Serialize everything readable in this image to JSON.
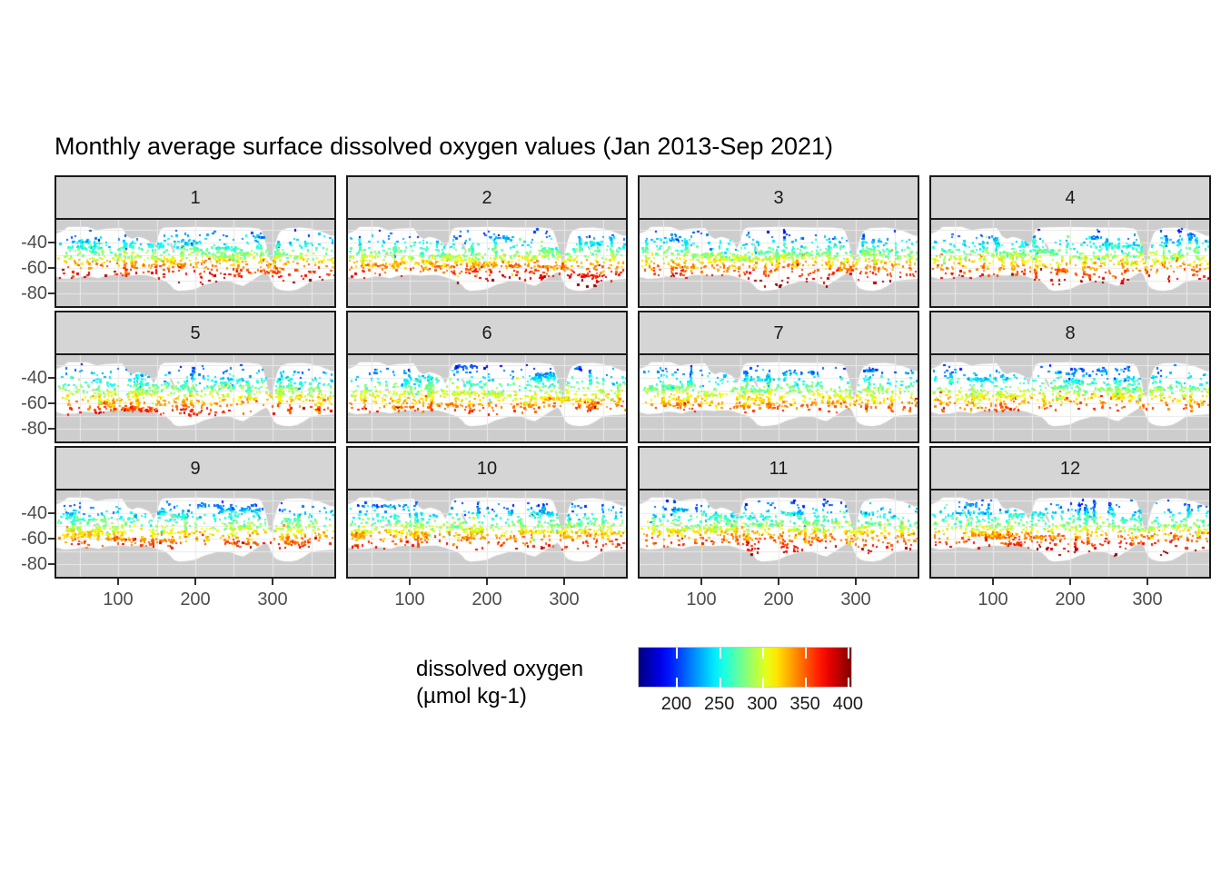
{
  "chart_data": {
    "type": "scatter",
    "subtype": "faceted-geographic-scatter",
    "title": "Monthly average surface dissolved oxygen values (Jan 2013-Sep 2021)",
    "x_axis": {
      "range": [
        20,
        380
      ],
      "major_ticks": [
        100,
        200,
        300
      ],
      "minor_gridlines": [
        50,
        150,
        250,
        350
      ],
      "tick_labels": [
        "100",
        "200",
        "300"
      ]
    },
    "y_axis": {
      "range": [
        -22,
        -90
      ],
      "major_ticks": [
        -40,
        -60,
        -80
      ],
      "minor_gridlines": [
        -30,
        -50,
        -70,
        -90
      ],
      "tick_labels": [
        "-40",
        "-60",
        "-80"
      ]
    },
    "grid": "on",
    "legend_position": "bottom",
    "color_scale": {
      "title_line1": "dissolved oxygen",
      "title_line2": "(µmol kg-1)",
      "palette": "jet",
      "limits": [
        155,
        405
      ],
      "tick_values": [
        200,
        250,
        300,
        350,
        400
      ],
      "tick_labels": [
        "200",
        "250",
        "300",
        "350",
        "400"
      ]
    },
    "facets": [
      {
        "label": "1",
        "south_extent": -76,
        "do_boost": 14
      },
      {
        "label": "2",
        "south_extent": -75,
        "do_boost": 12
      },
      {
        "label": "3",
        "south_extent": -74,
        "do_boost": 10
      },
      {
        "label": "4",
        "south_extent": -72,
        "do_boost": 4
      },
      {
        "label": "5",
        "south_extent": -68,
        "do_boost": 2
      },
      {
        "label": "6",
        "south_extent": -66.5,
        "do_boost": 0
      },
      {
        "label": "7",
        "south_extent": -65,
        "do_boost": 0
      },
      {
        "label": "8",
        "south_extent": -64,
        "do_boost": 2
      },
      {
        "label": "9",
        "south_extent": -65.5,
        "do_boost": 4
      },
      {
        "label": "10",
        "south_extent": -68,
        "do_boost": 8
      },
      {
        "label": "11",
        "south_extent": -72,
        "do_boost": 10
      },
      {
        "label": "12",
        "south_extent": -76,
        "do_boost": 14
      }
    ],
    "do_model": {
      "base": 188,
      "lat_ref": -27,
      "slope_per_deg": 4.5,
      "noise": 30,
      "boost_lat": -53
    },
    "points": {
      "scatter_per_facet": 620,
      "tracks_per_facet": 28,
      "track_points_min": 12,
      "track_points_max": 26
    },
    "land": {
      "top_band": [
        [
          20,
          -22
        ],
        [
          380,
          -22
        ],
        [
          380,
          -34.5
        ],
        [
          376,
          -34.5
        ],
        [
          370,
          -33
        ],
        [
          362,
          -31
        ],
        [
          350,
          -29
        ],
        [
          338,
          -28
        ],
        [
          320,
          -28.5
        ],
        [
          312,
          -30
        ],
        [
          308,
          -33
        ],
        [
          305,
          -38
        ],
        [
          302,
          -45
        ],
        [
          300,
          -52
        ],
        [
          298,
          -55.5
        ],
        [
          296,
          -52
        ],
        [
          294,
          -48
        ],
        [
          292,
          -42
        ],
        [
          289,
          -36
        ],
        [
          286,
          -31
        ],
        [
          283,
          -29
        ],
        [
          270,
          -28
        ],
        [
          240,
          -28
        ],
        [
          200,
          -27.5
        ],
        [
          160,
          -28
        ],
        [
          155,
          -29.5
        ],
        [
          152,
          -35
        ],
        [
          149,
          -41
        ],
        [
          146,
          -44.5
        ],
        [
          143,
          -41
        ],
        [
          140,
          -38.5
        ],
        [
          135,
          -37
        ],
        [
          130,
          -36
        ],
        [
          125,
          -35.5
        ],
        [
          118,
          -37
        ],
        [
          112,
          -35
        ],
        [
          107,
          -30
        ],
        [
          105,
          -28.5
        ],
        [
          85,
          -29
        ],
        [
          72,
          -30
        ],
        [
          60,
          -27.5
        ],
        [
          35,
          -27.5
        ],
        [
          28,
          -31
        ],
        [
          20,
          -33
        ]
      ],
      "new_zealand": [
        [
          167.5,
          -40
        ],
        [
          170,
          -41.5
        ],
        [
          172,
          -44
        ],
        [
          174,
          -47.5
        ],
        [
          172,
          -47
        ],
        [
          169.5,
          -44.5
        ],
        [
          167.8,
          -42.5
        ],
        [
          166.8,
          -40.8
        ]
      ],
      "kerguelen": [
        [
          68,
          -48.5
        ],
        [
          73,
          -48.5
        ],
        [
          73,
          -50.5
        ],
        [
          68,
          -50.5
        ]
      ],
      "antarctica": [
        [
          20,
          -90
        ],
        [
          20,
          -67
        ],
        [
          30,
          -68.5
        ],
        [
          45,
          -68
        ],
        [
          55,
          -66.5
        ],
        [
          65,
          -67
        ],
        [
          75,
          -68
        ],
        [
          85,
          -66
        ],
        [
          95,
          -65.5
        ],
        [
          105,
          -65.5
        ],
        [
          115,
          -66
        ],
        [
          125,
          -65.5
        ],
        [
          135,
          -65.5
        ],
        [
          145,
          -67
        ],
        [
          152,
          -68.5
        ],
        [
          158,
          -69.5
        ],
        [
          163,
          -71
        ],
        [
          168,
          -73.5
        ],
        [
          172,
          -76.5
        ],
        [
          178,
          -78
        ],
        [
          190,
          -77.5
        ],
        [
          200,
          -76.5
        ],
        [
          207,
          -74.5
        ],
        [
          213,
          -73
        ],
        [
          220,
          -72
        ],
        [
          228,
          -70.5
        ],
        [
          237,
          -70
        ],
        [
          247,
          -71
        ],
        [
          255,
          -73
        ],
        [
          262,
          -74
        ],
        [
          268,
          -72
        ],
        [
          273,
          -70
        ],
        [
          278,
          -68
        ],
        [
          283,
          -66
        ],
        [
          287,
          -64.5
        ],
        [
          291,
          -63.3
        ],
        [
          294,
          -64.5
        ],
        [
          296,
          -67
        ],
        [
          298,
          -70
        ],
        [
          301,
          -73.5
        ],
        [
          305,
          -76
        ],
        [
          312,
          -77.5
        ],
        [
          322,
          -78
        ],
        [
          332,
          -77
        ],
        [
          340,
          -74.5
        ],
        [
          347,
          -71.5
        ],
        [
          353,
          -70
        ],
        [
          360,
          -69.5
        ],
        [
          370,
          -69
        ],
        [
          380,
          -68.5
        ],
        [
          380,
          -90
        ]
      ]
    }
  },
  "colors": {
    "title_text": "#000000",
    "axis_text": "#4D4D4D",
    "tick_mark": "#333333",
    "strip_bg": "#D5D5D5",
    "strip_text": "#1A1A1A",
    "panel_border": "#1A1A1A",
    "panel_bg": "#FFFFFF",
    "land": "#CDCDCD",
    "grid": "#E9E9E9",
    "legend_text": "#1A1A1A",
    "colorbar_border": "#C9C9C9"
  }
}
